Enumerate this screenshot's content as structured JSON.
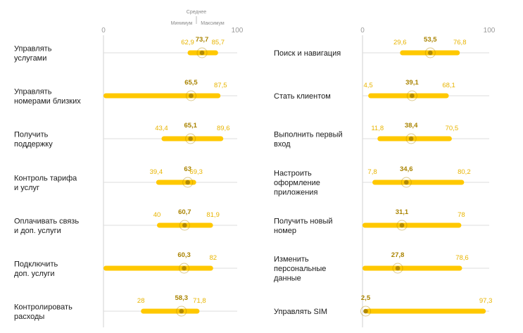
{
  "chart_data": [
    {
      "type": "range",
      "xlim": [
        0,
        100
      ],
      "ticks": [
        "0",
        "100"
      ],
      "legend": {
        "avg": "Среднее",
        "min": "Минимум",
        "max": "Максимум"
      },
      "series_colors": {
        "bar": "#ffc800",
        "dot": "#b38a00",
        "value": "#e8b400",
        "avg_value": "#a98300"
      },
      "rows": [
        {
          "label": [
            "Управлять",
            "услугами"
          ],
          "min": 62.9,
          "avg": 73.7,
          "max": 85.7,
          "min_label": "62,9",
          "avg_label": "73,7",
          "max_label": "85,7"
        },
        {
          "label": [
            "Управлять",
            "номерами близких"
          ],
          "min": 0,
          "avg": 65.5,
          "max": 87.5,
          "min_label": "",
          "avg_label": "65,5",
          "max_label": "87,5"
        },
        {
          "label": [
            "Получить",
            "поддержку"
          ],
          "min": 43.4,
          "avg": 65.1,
          "max": 89.6,
          "min_label": "43,4",
          "avg_label": "65,1",
          "max_label": "89,6"
        },
        {
          "label": [
            "Контроль тарифа",
            "и услуг"
          ],
          "min": 39.4,
          "avg": 63,
          "max": 69.3,
          "min_label": "39,4",
          "avg_label": "63",
          "max_label": "69,3"
        },
        {
          "label": [
            "Оплачивать связь",
            "и доп. услуги"
          ],
          "min": 40,
          "avg": 60.7,
          "max": 81.9,
          "min_label": "40",
          "avg_label": "60,7",
          "max_label": "81,9"
        },
        {
          "label": [
            "Подключить",
            "доп. услуги"
          ],
          "min": 0,
          "avg": 60.3,
          "max": 82,
          "min_label": "",
          "avg_label": "60,3",
          "max_label": "82"
        },
        {
          "label": [
            "Контролировать",
            "расходы"
          ],
          "min": 28,
          "avg": 58.3,
          "max": 71.8,
          "min_label": "28",
          "avg_label": "58,3",
          "max_label": "71,8"
        }
      ]
    },
    {
      "type": "range",
      "xlim": [
        0,
        100
      ],
      "ticks": [
        "0",
        "100"
      ],
      "rows": [
        {
          "label": [
            "Поиск и навигация"
          ],
          "min": 29.6,
          "avg": 53.5,
          "max": 76.8,
          "min_label": "29,6",
          "avg_label": "53,5",
          "max_label": "76,8"
        },
        {
          "label": [
            "Стать клиентом"
          ],
          "min": 4.5,
          "avg": 39.1,
          "max": 68.1,
          "min_label": "4,5",
          "avg_label": "39,1",
          "max_label": "68,1"
        },
        {
          "label": [
            "Выполнить первый",
            "вход"
          ],
          "min": 11.8,
          "avg": 38.4,
          "max": 70.5,
          "min_label": "11,8",
          "avg_label": "38,4",
          "max_label": "70,5"
        },
        {
          "label": [
            "Настроить",
            "оформление",
            "приложения"
          ],
          "min": 7.8,
          "avg": 34.6,
          "max": 80.2,
          "min_label": "7,8",
          "avg_label": "34,6",
          "max_label": "80,2"
        },
        {
          "label": [
            "Получить новый",
            "номер"
          ],
          "min": 0,
          "avg": 31.1,
          "max": 78,
          "min_label": "",
          "avg_label": "31,1",
          "max_label": "78"
        },
        {
          "label": [
            "Изменить",
            "персональные",
            "данные"
          ],
          "min": 0,
          "avg": 27.8,
          "max": 78.6,
          "min_label": "",
          "avg_label": "27,8",
          "max_label": "78,6"
        },
        {
          "label": [
            "Управлять SIM"
          ],
          "min": 2.5,
          "avg": 2.5,
          "max": 97.3,
          "min_label": "",
          "avg_label": "2,5",
          "max_label": "97,3"
        }
      ]
    }
  ]
}
